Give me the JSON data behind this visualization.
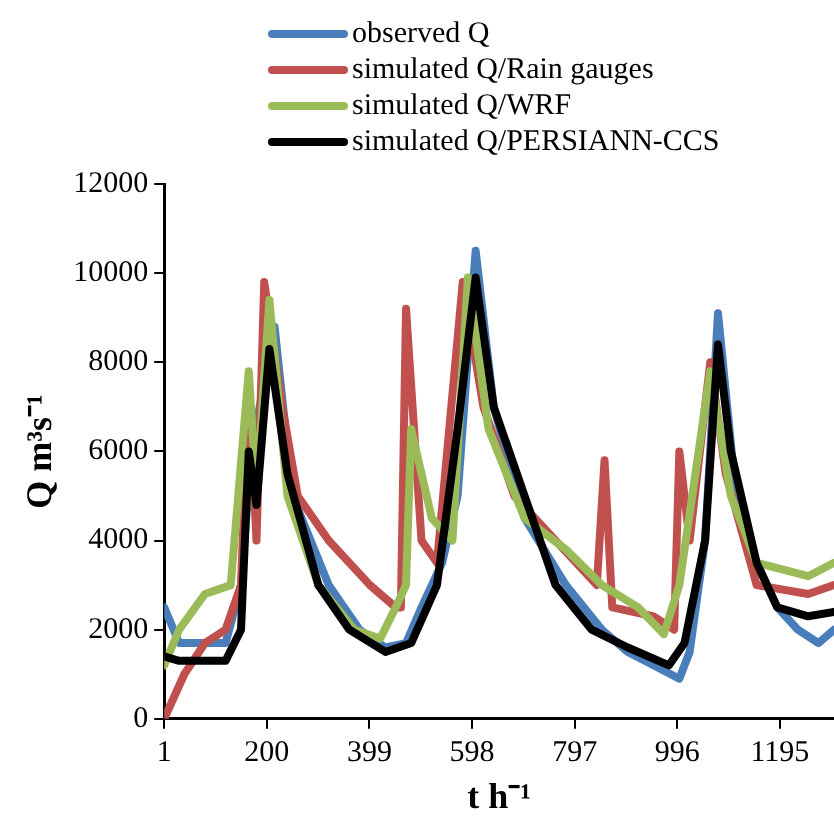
{
  "chart_data": {
    "type": "line",
    "xlabel": "t h⁻¹",
    "ylabel": "Q m³s⁻¹",
    "xlim": [
      1,
      1300
    ],
    "xticks": [
      1,
      200,
      399,
      598,
      797,
      996,
      1195
    ],
    "ylim": [
      0,
      12000
    ],
    "yticks": [
      0,
      2000,
      4000,
      6000,
      8000,
      10000,
      12000
    ],
    "grid": false,
    "legend": "top",
    "marker": "none",
    "line_style": "solid",
    "series": [
      {
        "name": "observed Q",
        "color": "#4a7ebb",
        "x": [
          1,
          30,
          120,
          150,
          170,
          215,
          250,
          320,
          380,
          430,
          470,
          500,
          540,
          570,
          605,
          640,
          700,
          780,
          850,
          900,
          950,
          1000,
          1020,
          1050,
          1075,
          1110,
          1150,
          1190,
          1230,
          1270,
          1300
        ],
        "values": [
          2500,
          1700,
          1700,
          3000,
          6000,
          8800,
          5000,
          3000,
          2000,
          1600,
          1700,
          2500,
          3500,
          5000,
          10500,
          7000,
          4500,
          3000,
          2000,
          1500,
          1200,
          900,
          1500,
          4000,
          9100,
          5000,
          3500,
          2500,
          2000,
          1700,
          2000
        ]
      },
      {
        "name": "simulated Q/Rain gauges",
        "color": "#c0504d",
        "x": [
          1,
          40,
          80,
          120,
          150,
          165,
          180,
          195,
          230,
          260,
          320,
          400,
          450,
          460,
          470,
          500,
          530,
          580,
          620,
          680,
          760,
          840,
          855,
          870,
          950,
          990,
          1000,
          1020,
          1060,
          1090,
          1150,
          1250,
          1300
        ],
        "values": [
          0,
          1000,
          1700,
          2000,
          3000,
          7500,
          4000,
          9800,
          7000,
          5000,
          4000,
          3000,
          2500,
          2500,
          9200,
          4000,
          3500,
          9800,
          7000,
          5000,
          4000,
          3000,
          5800,
          2500,
          2300,
          2000,
          6000,
          4000,
          8000,
          5500,
          3000,
          2800,
          3000
        ]
      },
      {
        "name": "simulated Q/WRF",
        "color": "#9bbb59",
        "x": [
          1,
          30,
          80,
          130,
          165,
          180,
          205,
          240,
          300,
          370,
          420,
          450,
          470,
          480,
          520,
          560,
          590,
          630,
          700,
          780,
          850,
          920,
          970,
          1000,
          1060,
          1100,
          1150,
          1250,
          1300
        ],
        "values": [
          1200,
          2000,
          2800,
          3000,
          7800,
          5000,
          9400,
          5000,
          3000,
          2000,
          1800,
          2500,
          3000,
          6500,
          4500,
          4000,
          9900,
          6500,
          4500,
          3800,
          3000,
          2500,
          1900,
          3000,
          7800,
          5000,
          3500,
          3200,
          3500
        ]
      },
      {
        "name": "simulated Q/PERSIANN-CCS",
        "color": "#000000",
        "x": [
          1,
          30,
          120,
          150,
          165,
          180,
          205,
          240,
          300,
          360,
          430,
          480,
          530,
          570,
          605,
          640,
          700,
          760,
          830,
          900,
          980,
          1010,
          1050,
          1075,
          1100,
          1150,
          1190,
          1250,
          1300
        ],
        "values": [
          1400,
          1300,
          1300,
          2000,
          6000,
          4800,
          8300,
          5500,
          3000,
          2000,
          1500,
          1700,
          3000,
          6500,
          9900,
          7000,
          5000,
          3000,
          2000,
          1600,
          1200,
          1700,
          4000,
          8400,
          6000,
          3500,
          2500,
          2300,
          2400
        ]
      }
    ]
  }
}
